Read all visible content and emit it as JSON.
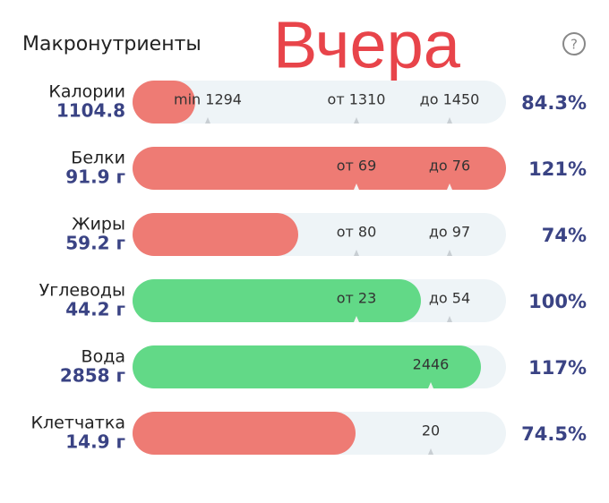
{
  "header": {
    "title": "Макронутриенты",
    "annotation": "Вчера",
    "help": "?"
  },
  "rows": [
    {
      "name": "Калории",
      "value": "1104.8",
      "markers": [
        "min 1294",
        "от 1310",
        "до 1450"
      ],
      "percent": "84.3%"
    },
    {
      "name": "Белки",
      "value": "91.9 г",
      "markers": [
        "от 69",
        "до 76"
      ],
      "percent": "121%"
    },
    {
      "name": "Жиры",
      "value": "59.2 г",
      "markers": [
        "от 80",
        "до 97"
      ],
      "percent": "74%"
    },
    {
      "name": "Углеводы",
      "value": "44.2 г",
      "markers": [
        "от 23",
        "до 54"
      ],
      "percent": "100%"
    },
    {
      "name": "Вода",
      "value": "2858 г",
      "markers": [
        "2446"
      ],
      "percent": "117%"
    },
    {
      "name": "Клетчатка",
      "value": "14.9 г",
      "markers": [
        "20"
      ],
      "percent": "74.5%"
    }
  ]
}
